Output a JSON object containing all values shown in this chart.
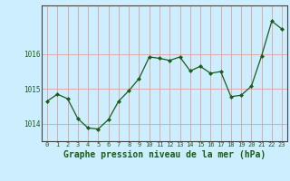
{
  "x": [
    0,
    1,
    2,
    3,
    4,
    5,
    6,
    7,
    8,
    9,
    10,
    11,
    12,
    13,
    14,
    15,
    16,
    17,
    18,
    19,
    20,
    21,
    22,
    23
  ],
  "y": [
    1014.65,
    1014.85,
    1014.72,
    1014.15,
    1013.88,
    1013.85,
    1014.12,
    1014.65,
    1014.95,
    1015.3,
    1015.92,
    1015.88,
    1015.82,
    1015.92,
    1015.52,
    1015.65,
    1015.45,
    1015.5,
    1014.78,
    1014.82,
    1015.08,
    1015.95,
    1016.95,
    1016.72
  ],
  "line_color": "#1a5c1a",
  "marker_color": "#1a5c1a",
  "bg_color": "#cceeff",
  "grid_major_color": "#ddaaaa",
  "grid_minor_color": "#ddaaaa",
  "title": "Graphe pression niveau de la mer (hPa)",
  "ylim_min": 1013.5,
  "ylim_max": 1017.4,
  "yticks": [
    1014,
    1015,
    1016
  ],
  "xtick_fontsize": 5.0,
  "ytick_fontsize": 5.5,
  "title_fontsize": 7.0
}
